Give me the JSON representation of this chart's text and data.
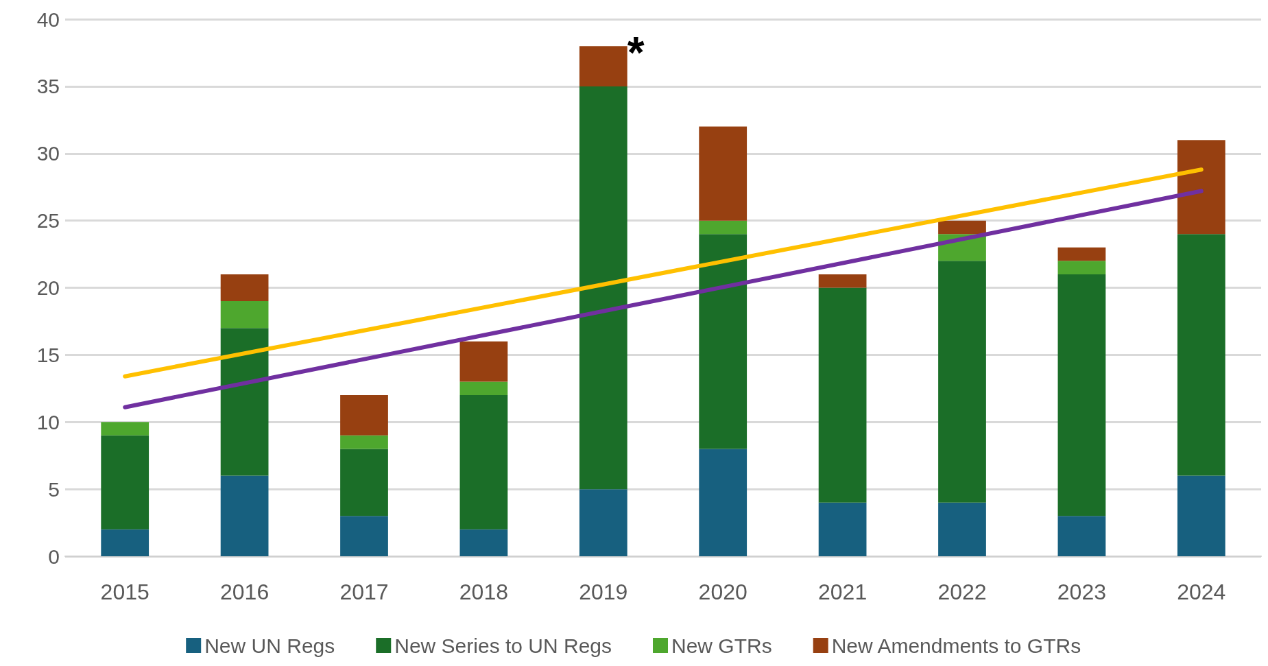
{
  "chart_data": {
    "type": "bar",
    "stacked": true,
    "categories": [
      "2015",
      "2016",
      "2017",
      "2018",
      "2019",
      "2020",
      "2021",
      "2022",
      "2023",
      "2024"
    ],
    "series": [
      {
        "name": "New UN Regs",
        "color": "#17607f",
        "values": [
          2,
          6,
          3,
          2,
          5,
          8,
          4,
          4,
          3,
          6
        ]
      },
      {
        "name": "New Series to UN Regs",
        "color": "#1b6e28",
        "values": [
          7,
          11,
          5,
          10,
          30,
          16,
          16,
          18,
          18,
          18
        ]
      },
      {
        "name": "New GTRs",
        "color": "#4ea72e",
        "values": [
          1,
          2,
          1,
          1,
          0,
          1,
          0,
          2,
          1,
          0
        ]
      },
      {
        "name": "New Amendments to GTRs",
        "color": "#974011",
        "values": [
          0,
          2,
          3,
          3,
          3,
          7,
          1,
          1,
          1,
          7
        ]
      },
      {
        "type": "line",
        "color": "#ffc000",
        "values": [
          13.4,
          null,
          null,
          null,
          null,
          null,
          null,
          null,
          null,
          28.8
        ]
      },
      {
        "type": "line",
        "color": "#7030a0",
        "values": [
          11.1,
          null,
          null,
          null,
          null,
          null,
          null,
          null,
          null,
          27.2
        ]
      }
    ],
    "ylim": [
      0,
      40
    ],
    "yticks": [
      0,
      5,
      10,
      15,
      20,
      25,
      30,
      35,
      40
    ],
    "grid": "y",
    "legend": "bottom",
    "marker": "none",
    "line_style": "solid",
    "annotations": [
      {
        "text": "*",
        "x": "2019",
        "y": 38
      }
    ]
  }
}
